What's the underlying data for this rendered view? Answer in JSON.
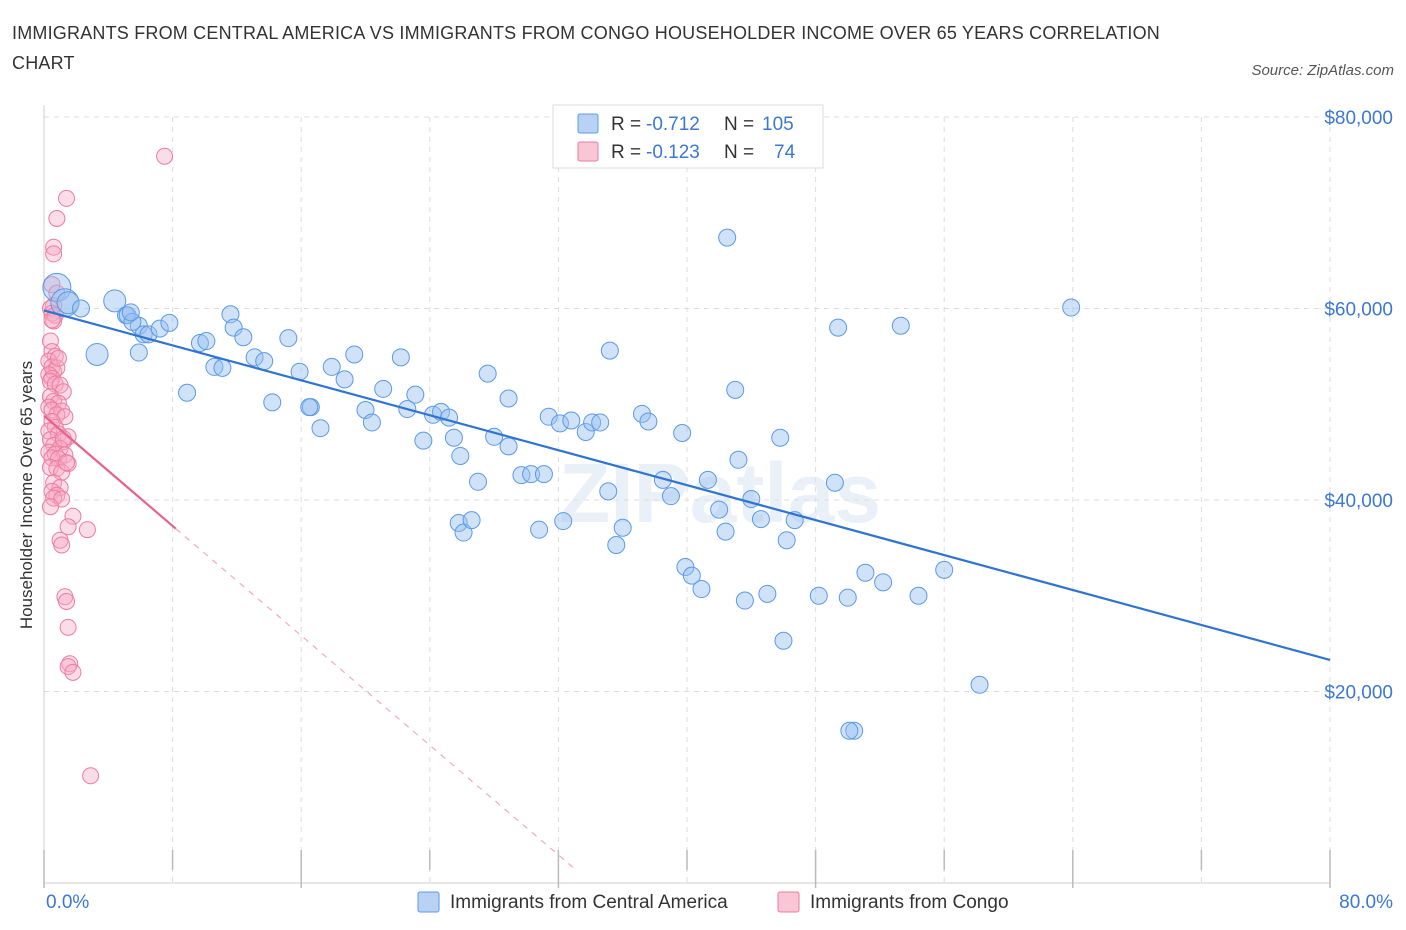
{
  "title": "IMMIGRANTS FROM CENTRAL AMERICA VS IMMIGRANTS FROM CONGO HOUSEHOLDER INCOME OVER 65 YEARS CORRELATION CHART",
  "source": "Source: ZipAtlas.com",
  "watermark": "ZIPatlas",
  "colors": {
    "blue": "#5b9ae8",
    "blue_line": "#2f74d0",
    "blue_text": "#3a78d4",
    "pink": "#f07aa0",
    "pink_line": "#e8628f",
    "grid": "#dddddd"
  },
  "legend_box": [
    {
      "r_label": "R = ",
      "r_value": "-0.712",
      "n_label": "N = ",
      "n_value": "105"
    },
    {
      "r_label": "R = ",
      "r_value": "-0.123",
      "n_label": "N = ",
      "n_value": "74"
    }
  ],
  "bottom_legend": [
    "Immigrants from Central America",
    "Immigrants from Congo"
  ],
  "chart_data": {
    "type": "scatter",
    "ylabel": "Householder Income Over 65 years",
    "xlim": [
      0,
      80
    ],
    "ylim": [
      0,
      80000
    ],
    "x_tick_labels": [
      "0.0%",
      "80.0%"
    ],
    "y_ticks": [
      20000,
      40000,
      60000,
      80000
    ],
    "y_tick_labels": [
      "$20,000",
      "$40,000",
      "$60,000",
      "$80,000"
    ],
    "grid": true,
    "legend_position": "top-center",
    "series": [
      {
        "name": "Immigrants from Central America",
        "r": -0.712,
        "n": 105,
        "trend": {
          "x": [
            0,
            80
          ],
          "y": [
            59800,
            23300
          ]
        },
        "points": [
          [
            0.8,
            62200,
            3
          ],
          [
            1.3,
            60600,
            3
          ],
          [
            1.5,
            60600,
            2
          ],
          [
            2.3,
            60000,
            1
          ],
          [
            3.3,
            55200,
            2
          ],
          [
            4.4,
            60800,
            2
          ],
          [
            5.1,
            59300,
            1
          ],
          [
            5.2,
            59300,
            1
          ],
          [
            5.9,
            58200,
            1
          ],
          [
            5.5,
            58600,
            1
          ],
          [
            5.4,
            59600,
            1
          ],
          [
            5.9,
            55400,
            1
          ],
          [
            6.2,
            57300,
            1
          ],
          [
            6.5,
            57300,
            1
          ],
          [
            7.2,
            57900,
            1
          ],
          [
            7.8,
            58500,
            1
          ],
          [
            8.9,
            51200,
            1
          ],
          [
            9.7,
            56400,
            1
          ],
          [
            10.1,
            56600,
            1
          ],
          [
            10.6,
            53900,
            1
          ],
          [
            11.1,
            53800,
            1
          ],
          [
            11.6,
            59400,
            1
          ],
          [
            11.8,
            58000,
            1
          ],
          [
            12.4,
            57000,
            1
          ],
          [
            13.1,
            54900,
            1
          ],
          [
            13.7,
            54500,
            1
          ],
          [
            14.2,
            50200,
            1
          ],
          [
            15.2,
            56900,
            1
          ],
          [
            15.9,
            53400,
            1
          ],
          [
            16.6,
            49700,
            1
          ],
          [
            16.5,
            49700,
            1
          ],
          [
            17.2,
            47500,
            1
          ],
          [
            17.9,
            53900,
            1
          ],
          [
            18.7,
            52600,
            1
          ],
          [
            19.3,
            55200,
            1
          ],
          [
            20.0,
            49400,
            1
          ],
          [
            20.4,
            48100,
            1
          ],
          [
            21.1,
            51600,
            1
          ],
          [
            22.2,
            54900,
            1
          ],
          [
            22.6,
            49500,
            1
          ],
          [
            23.1,
            51000,
            1
          ],
          [
            23.6,
            46200,
            1
          ],
          [
            24.2,
            48900,
            1
          ],
          [
            24.7,
            49200,
            1
          ],
          [
            25.2,
            48600,
            1
          ],
          [
            25.5,
            46500,
            1
          ],
          [
            25.9,
            44600,
            1
          ],
          [
            27.0,
            41900,
            1
          ],
          [
            25.8,
            37600,
            1
          ],
          [
            26.1,
            36600,
            1
          ],
          [
            26.6,
            37900,
            1
          ],
          [
            27.6,
            53200,
            1
          ],
          [
            28.0,
            46600,
            1
          ],
          [
            28.9,
            50600,
            1
          ],
          [
            28.9,
            45600,
            1
          ],
          [
            29.7,
            42600,
            1
          ],
          [
            30.3,
            42700,
            1
          ],
          [
            30.8,
            36900,
            1
          ],
          [
            31.1,
            42700,
            1
          ],
          [
            31.4,
            48700,
            1
          ],
          [
            32.3,
            37800,
            1
          ],
          [
            32.1,
            48000,
            1
          ],
          [
            32.8,
            48300,
            1
          ],
          [
            33.7,
            47100,
            1
          ],
          [
            34.1,
            48100,
            1
          ],
          [
            34.6,
            48100,
            1
          ],
          [
            35.1,
            40900,
            1
          ],
          [
            35.2,
            55600,
            1
          ],
          [
            35.6,
            35300,
            1
          ],
          [
            36.0,
            37100,
            1
          ],
          [
            37.2,
            49000,
            1
          ],
          [
            37.6,
            48200,
            1
          ],
          [
            38.5,
            42100,
            1
          ],
          [
            39.0,
            40400,
            1
          ],
          [
            39.7,
            47000,
            1
          ],
          [
            39.9,
            33000,
            1
          ],
          [
            40.3,
            32100,
            1
          ],
          [
            40.9,
            30700,
            1
          ],
          [
            41.3,
            42100,
            1
          ],
          [
            42.0,
            39000,
            1
          ],
          [
            42.4,
            36700,
            1
          ],
          [
            42.5,
            67400,
            1
          ],
          [
            43.0,
            51500,
            1
          ],
          [
            43.2,
            44200,
            1
          ],
          [
            43.6,
            29500,
            1
          ],
          [
            44.0,
            40100,
            1
          ],
          [
            44.6,
            38000,
            1
          ],
          [
            45.0,
            30200,
            1
          ],
          [
            45.8,
            46500,
            1
          ],
          [
            46.0,
            25300,
            1
          ],
          [
            46.2,
            35800,
            1
          ],
          [
            46.7,
            37900,
            1
          ],
          [
            48.2,
            30000,
            1
          ],
          [
            49.2,
            41800,
            1
          ],
          [
            49.4,
            58000,
            1
          ],
          [
            50.0,
            29800,
            1
          ],
          [
            51.1,
            32400,
            1
          ],
          [
            52.2,
            31400,
            1
          ],
          [
            53.3,
            58200,
            1
          ],
          [
            54.4,
            30000,
            1
          ],
          [
            56.0,
            32700,
            1
          ],
          [
            58.2,
            20700,
            1
          ],
          [
            63.9,
            60100,
            1
          ],
          [
            50.4,
            15900,
            1
          ],
          [
            50.1,
            15900,
            1
          ]
        ]
      },
      {
        "name": "Immigrants from Congo",
        "r": -0.123,
        "n": 74,
        "trend": {
          "x": [
            0,
            8.2
          ],
          "y": [
            48800,
            37000
          ]
        },
        "trend_extension": {
          "x": [
            8.2,
            33
          ],
          "y": [
            37000,
            1500
          ]
        },
        "points": [
          [
            7.5,
            75900
          ],
          [
            1.4,
            71500
          ],
          [
            0.8,
            69400
          ],
          [
            0.6,
            66400
          ],
          [
            0.6,
            65700
          ],
          [
            0.5,
            62500
          ],
          [
            0.8,
            61600
          ],
          [
            0.6,
            60300
          ],
          [
            0.4,
            60000
          ],
          [
            0.5,
            59500
          ],
          [
            0.7,
            59300
          ],
          [
            0.6,
            58700
          ],
          [
            0.4,
            56600
          ],
          [
            0.5,
            55500
          ],
          [
            0.7,
            55000
          ],
          [
            0.3,
            54500
          ],
          [
            0.5,
            53900
          ],
          [
            0.6,
            53400
          ],
          [
            0.8,
            53800
          ],
          [
            0.3,
            53100
          ],
          [
            0.5,
            52700
          ],
          [
            0.4,
            52400
          ],
          [
            0.7,
            52100
          ],
          [
            1.0,
            52000
          ],
          [
            1.2,
            51300
          ],
          [
            0.4,
            50800
          ],
          [
            0.6,
            50300
          ],
          [
            0.9,
            50100
          ],
          [
            0.3,
            49700
          ],
          [
            0.5,
            49400
          ],
          [
            1.1,
            49300
          ],
          [
            0.8,
            48900
          ],
          [
            1.3,
            48700
          ],
          [
            0.5,
            48200
          ],
          [
            0.7,
            47600
          ],
          [
            0.3,
            47200
          ],
          [
            0.9,
            46900
          ],
          [
            1.5,
            46600
          ],
          [
            0.4,
            46300
          ],
          [
            1.2,
            46100
          ],
          [
            0.6,
            45700
          ],
          [
            1.0,
            45400
          ],
          [
            0.3,
            45000
          ],
          [
            0.7,
            44800
          ],
          [
            1.3,
            44700
          ],
          [
            0.5,
            44400
          ],
          [
            0.9,
            44300
          ],
          [
            1.5,
            43800
          ],
          [
            0.4,
            43400
          ],
          [
            0.8,
            43300
          ],
          [
            1.1,
            42900
          ],
          [
            0.6,
            41800
          ],
          [
            1.0,
            41300
          ],
          [
            0.5,
            40900
          ],
          [
            0.8,
            40500
          ],
          [
            0.6,
            40200
          ],
          [
            1.1,
            40100
          ],
          [
            0.4,
            39300
          ],
          [
            1.8,
            38300
          ],
          [
            1.5,
            37200
          ],
          [
            2.7,
            36900
          ],
          [
            1.0,
            35800
          ],
          [
            1.1,
            35300
          ],
          [
            1.3,
            29900
          ],
          [
            1.4,
            29400
          ],
          [
            1.5,
            26700
          ],
          [
            1.6,
            22900
          ],
          [
            1.5,
            22600
          ],
          [
            1.8,
            22000
          ],
          [
            2.9,
            11200
          ],
          [
            0.9,
            54800
          ],
          [
            1.2,
            46400
          ],
          [
            1.4,
            43900
          ],
          [
            0.5,
            58800
          ]
        ]
      }
    ]
  }
}
